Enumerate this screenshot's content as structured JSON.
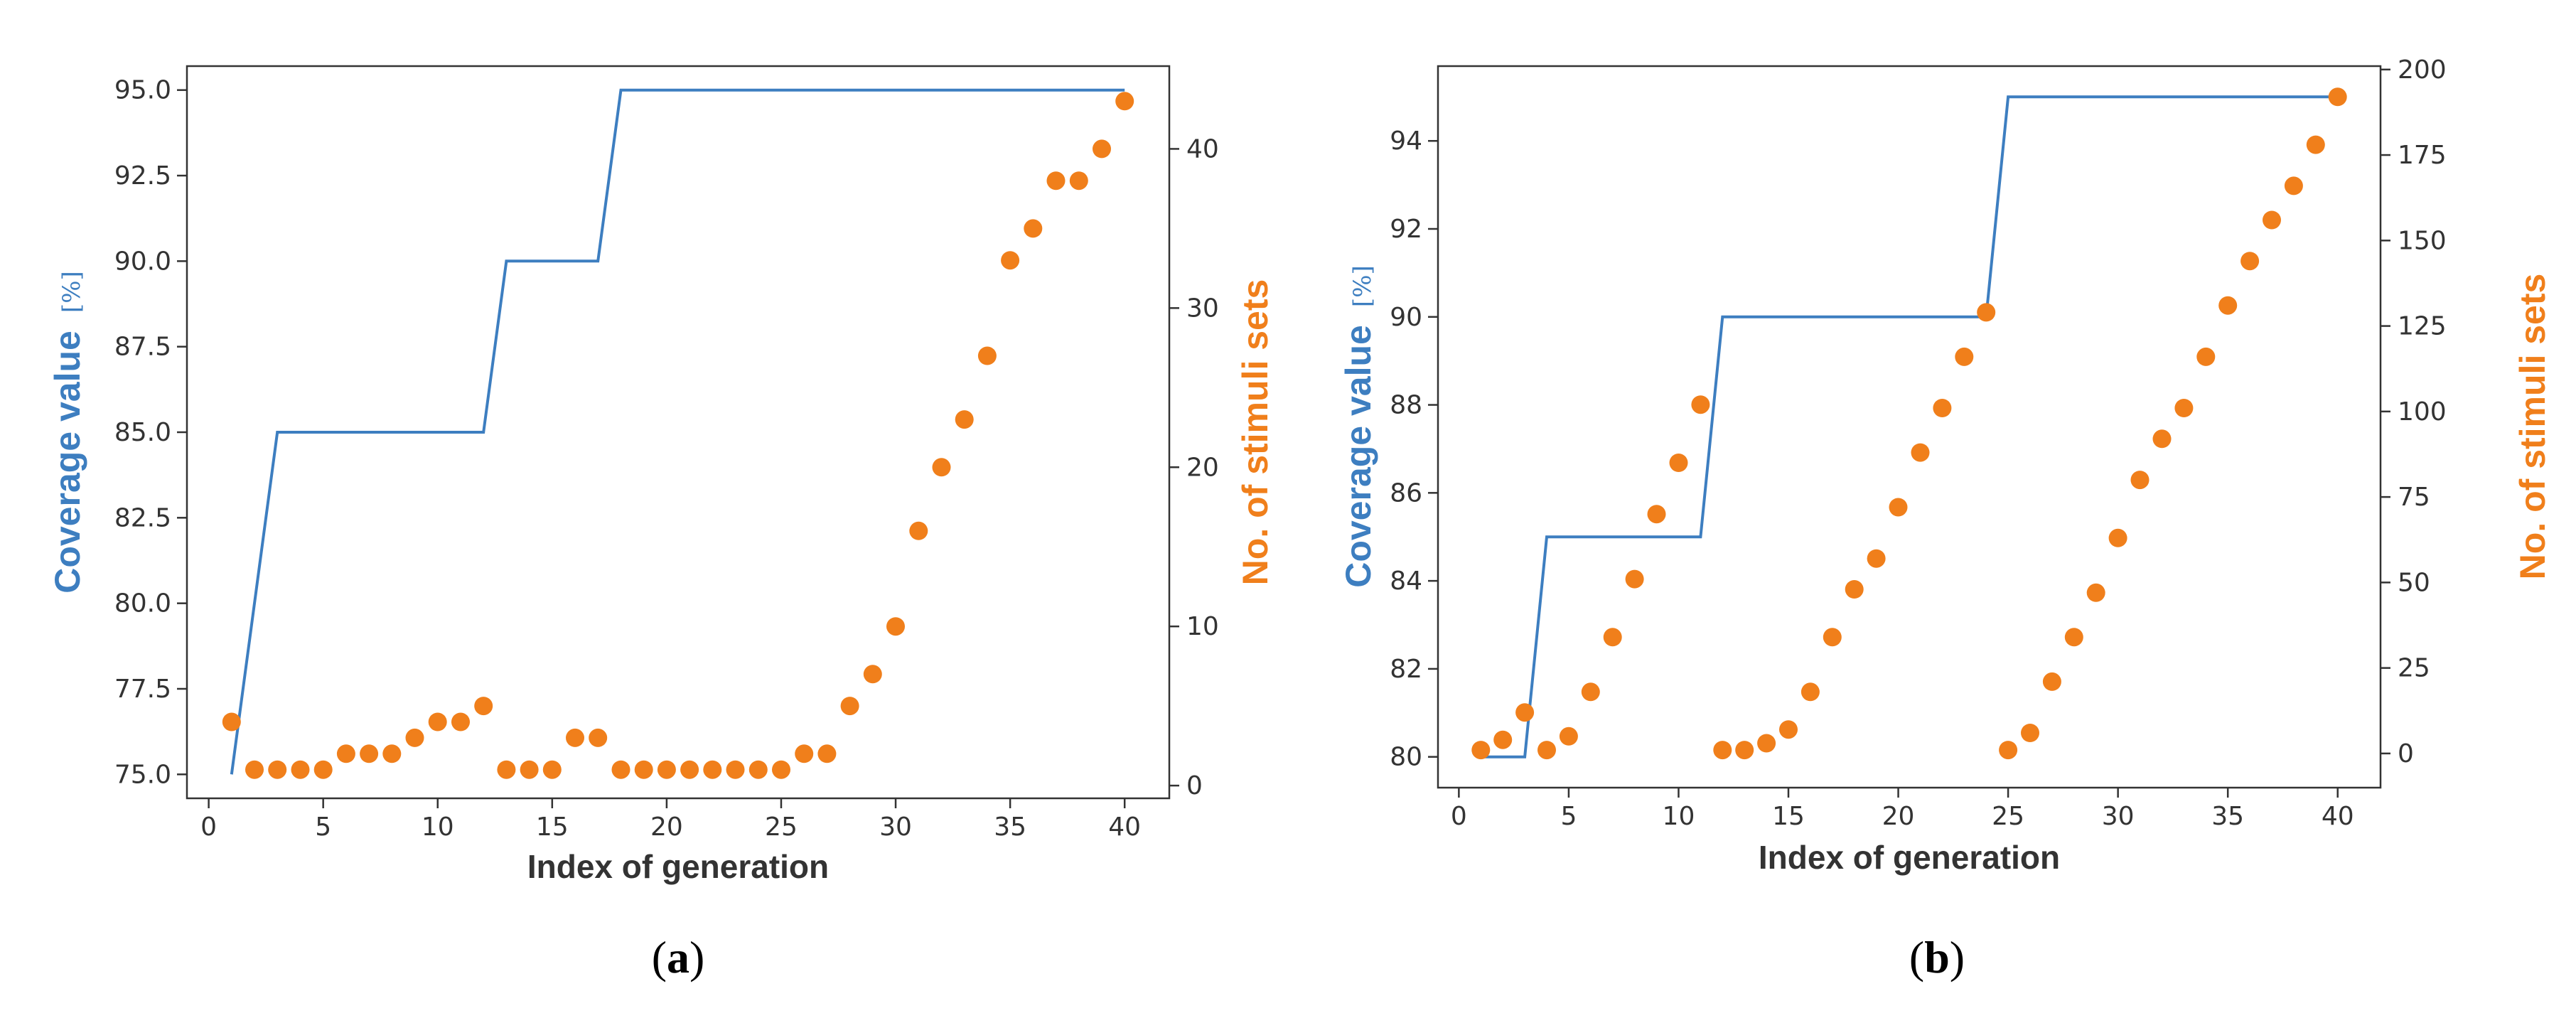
{
  "colors": {
    "line": "#3d7ec0",
    "dots": "#f07f1b",
    "axis": "#333333"
  },
  "chart_data": [
    {
      "type": "line+scatter",
      "panel_label": "a",
      "xlabel": "Index of generation",
      "ylabel_left": "Coverage value",
      "ylabel_left_unit": "[%]",
      "ylabel_right": "No. of stimuli sets",
      "xlim": [
        -0.95,
        41.95
      ],
      "ylim_left": [
        74.3,
        95.7
      ],
      "ylim_right": [
        -0.8,
        45.2
      ],
      "xticks": [
        0,
        5,
        10,
        15,
        20,
        25,
        30,
        35,
        40
      ],
      "yticks_left": [
        75.0,
        77.5,
        80.0,
        82.5,
        85.0,
        87.5,
        90.0,
        92.5,
        95.0
      ],
      "ytick_labels_left": [
        "75.0",
        "77.5",
        "80.0",
        "82.5",
        "85.0",
        "87.5",
        "90.0",
        "92.5",
        "95.0"
      ],
      "yticks_right": [
        0,
        10,
        20,
        30,
        40
      ],
      "coverage_line": {
        "x": [
          1,
          3,
          12,
          13,
          17,
          18,
          40
        ],
        "y": [
          75,
          85,
          85,
          90,
          90,
          95,
          95
        ]
      },
      "stimuli_points": {
        "x": [
          1,
          2,
          3,
          4,
          5,
          6,
          7,
          8,
          9,
          10,
          11,
          12,
          13,
          14,
          15,
          16,
          17,
          18,
          19,
          20,
          21,
          22,
          23,
          24,
          25,
          26,
          27,
          28,
          29,
          30,
          31,
          32,
          33,
          34,
          35,
          36,
          37,
          38,
          39,
          40
        ],
        "y": [
          4,
          1,
          1,
          1,
          1,
          2,
          2,
          2,
          3,
          4,
          4,
          5,
          1,
          1,
          1,
          3,
          3,
          1,
          1,
          1,
          1,
          1,
          1,
          1,
          1,
          2,
          2,
          5,
          7,
          10,
          16,
          20,
          23,
          27,
          33,
          35,
          38,
          38,
          40,
          43
        ]
      }
    },
    {
      "type": "line+scatter",
      "panel_label": "b",
      "xlabel": "Index of generation",
      "ylabel_left": "Coverage value",
      "ylabel_left_unit": "[%]",
      "ylabel_right": "No. of stimuli sets",
      "xlim": [
        -0.95,
        41.95
      ],
      "ylim_left": [
        79.3,
        95.7
      ],
      "ylim_right": [
        -10,
        201
      ],
      "xticks": [
        0,
        5,
        10,
        15,
        20,
        25,
        30,
        35,
        40
      ],
      "yticks_left": [
        80,
        82,
        84,
        86,
        88,
        90,
        92,
        94
      ],
      "ytick_labels_left": [
        "80",
        "82",
        "84",
        "86",
        "88",
        "90",
        "92",
        "94"
      ],
      "yticks_right": [
        0,
        25,
        50,
        75,
        100,
        125,
        150,
        175,
        200
      ],
      "coverage_line": {
        "x": [
          1,
          3,
          4,
          11,
          12,
          24,
          25,
          40
        ],
        "y": [
          80,
          80,
          85,
          85,
          90,
          90,
          95,
          95
        ]
      },
      "stimuli_points": {
        "x": [
          1,
          2,
          3,
          4,
          5,
          6,
          7,
          8,
          9,
          10,
          11,
          12,
          13,
          14,
          15,
          16,
          17,
          18,
          19,
          20,
          21,
          22,
          23,
          24,
          25,
          26,
          27,
          28,
          29,
          30,
          31,
          32,
          33,
          34,
          35,
          36,
          37,
          38,
          39,
          40
        ],
        "y": [
          1,
          4,
          12,
          1,
          5,
          18,
          34,
          51,
          70,
          85,
          102,
          1,
          1,
          3,
          7,
          18,
          34,
          48,
          57,
          72,
          88,
          101,
          116,
          129,
          1,
          6,
          21,
          34,
          47,
          63,
          80,
          92,
          101,
          116,
          131,
          144,
          156,
          166,
          178,
          192
        ]
      }
    }
  ]
}
